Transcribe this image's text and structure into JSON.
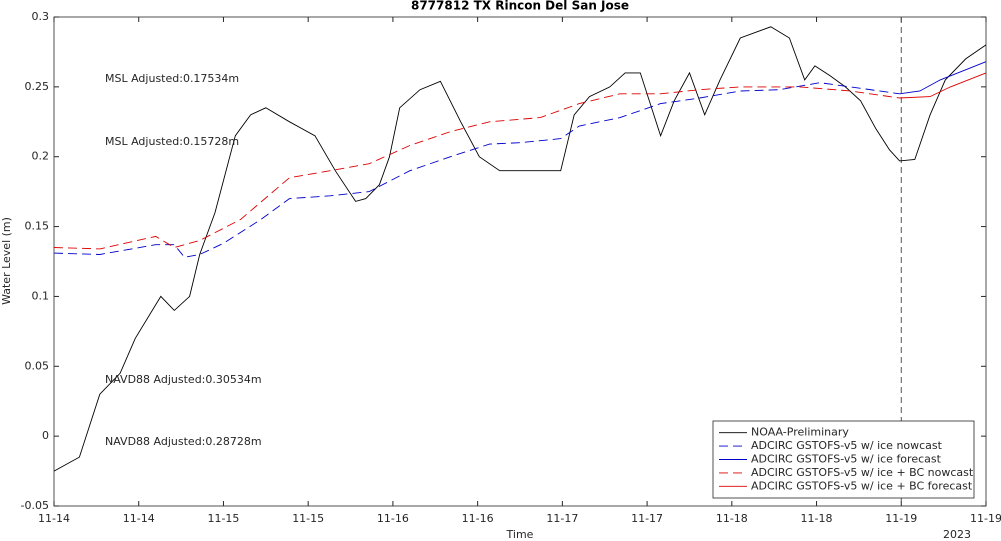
{
  "chart_data": {
    "type": "line",
    "title": "8777812 TX Rincon Del San Jose",
    "xlabel": "Time",
    "ylabel": "Water Level (m)",
    "xsublabel": "2023",
    "xlim": [
      0,
      5.5
    ],
    "ylim": [
      -0.05,
      0.3
    ],
    "xticks": [
      {
        "value": 0,
        "label": "11-14"
      },
      {
        "value": 0.5,
        "label": "11-14"
      },
      {
        "value": 1,
        "label": "11-15"
      },
      {
        "value": 1.5,
        "label": "11-15"
      },
      {
        "value": 2,
        "label": "11-16"
      },
      {
        "value": 2.5,
        "label": "11-16"
      },
      {
        "value": 3,
        "label": "11-17"
      },
      {
        "value": 3.5,
        "label": "11-17"
      },
      {
        "value": 4,
        "label": "11-18"
      },
      {
        "value": 4.5,
        "label": "11-18"
      },
      {
        "value": 5,
        "label": "11-19"
      },
      {
        "value": 5.5,
        "label": "11-19"
      }
    ],
    "yticks": [
      -0.05,
      0,
      0.05,
      0.1,
      0.15,
      0.2,
      0.25,
      0.3
    ],
    "vline": 5,
    "annotations": [
      {
        "text": "MSL Adjusted:0.17534m",
        "color": "#0000cc"
      },
      {
        "text": "MSL Adjusted:0.15728m",
        "color": "#dd0000"
      },
      {
        "text": "NAVD88 Adjusted:0.30534m",
        "color": "#0000cc"
      },
      {
        "text": "NAVD88 Adjusted:0.28728m",
        "color": "#dd0000"
      }
    ],
    "legend": "lower right",
    "series": [
      {
        "name": "NOAA-Preliminary",
        "color": "#000000",
        "dashed": false,
        "x": [
          0,
          0.15,
          0.27,
          0.39,
          0.48,
          0.63,
          0.71,
          0.8,
          0.86,
          0.95,
          1.07,
          1.16,
          1.25,
          1.39,
          1.54,
          1.66,
          1.78,
          1.84,
          1.92,
          1.98,
          2.04,
          2.16,
          2.28,
          2.4,
          2.51,
          2.63,
          2.75,
          2.99,
          3.07,
          3.16,
          3.28,
          3.37,
          3.46,
          3.58,
          3.66,
          3.75,
          3.84,
          3.93,
          4.05,
          4.23,
          4.34,
          4.43,
          4.49,
          4.58,
          4.67,
          4.76,
          4.85,
          4.93,
          4.99,
          5.08,
          5.17,
          5.26,
          5.38,
          5.5
        ],
        "values": [
          -0.025,
          -0.015,
          0.03,
          0.045,
          0.07,
          0.1,
          0.09,
          0.1,
          0.13,
          0.16,
          0.215,
          0.23,
          0.235,
          0.225,
          0.215,
          0.19,
          0.168,
          0.17,
          0.18,
          0.2,
          0.235,
          0.248,
          0.254,
          0.225,
          0.2,
          0.19,
          0.19,
          0.19,
          0.23,
          0.243,
          0.25,
          0.26,
          0.26,
          0.215,
          0.24,
          0.26,
          0.23,
          0.255,
          0.285,
          0.293,
          0.285,
          0.255,
          0.265,
          0.258,
          0.25,
          0.24,
          0.22,
          0.205,
          0.197,
          0.198,
          0.23,
          0.255,
          0.27,
          0.28
        ]
      },
      {
        "name": "ADCIRC GSTOFS-v5 w/ ice nowcast",
        "color": "#0000cc",
        "dashed": true,
        "x": [
          0,
          0.27,
          0.6,
          0.71,
          0.77,
          0.86,
          1,
          1.22,
          1.39,
          1.63,
          1.86,
          2.1,
          2.34,
          2.57,
          2.75,
          2.99,
          3.1,
          3.34,
          3.58,
          3.81,
          4.05,
          4.28,
          4.52,
          4.76,
          4.99
        ],
        "values": [
          0.131,
          0.13,
          0.137,
          0.137,
          0.128,
          0.13,
          0.138,
          0.155,
          0.17,
          0.172,
          0.175,
          0.19,
          0.2,
          0.209,
          0.21,
          0.213,
          0.222,
          0.228,
          0.238,
          0.242,
          0.247,
          0.248,
          0.253,
          0.249,
          0.245
        ]
      },
      {
        "name": "ADCIRC GSTOFS-v5 w/ ice forecast",
        "color": "#0000cc",
        "dashed": false,
        "x": [
          4.99,
          5.11,
          5.23,
          5.5
        ],
        "values": [
          0.245,
          0.247,
          0.255,
          0.268
        ]
      },
      {
        "name": "ADCIRC GSTOFS-v5 w/ ice + BC nowcast",
        "color": "#dd0000",
        "dashed": true,
        "x": [
          0,
          0.27,
          0.6,
          0.71,
          0.86,
          1.1,
          1.39,
          1.63,
          1.86,
          2.1,
          2.34,
          2.57,
          2.87,
          3.1,
          3.34,
          3.58,
          3.81,
          4.05,
          4.4,
          4.7,
          4.99
        ],
        "values": [
          0.135,
          0.134,
          0.143,
          0.135,
          0.14,
          0.155,
          0.185,
          0.19,
          0.195,
          0.208,
          0.218,
          0.225,
          0.228,
          0.238,
          0.245,
          0.245,
          0.248,
          0.25,
          0.25,
          0.247,
          0.242
        ]
      },
      {
        "name": "ADCIRC GSTOFS-v5 w/ ice + BC forecast",
        "color": "#dd0000",
        "dashed": false,
        "x": [
          4.99,
          5.17,
          5.29,
          5.5
        ],
        "values": [
          0.242,
          0.243,
          0.25,
          0.26
        ]
      }
    ]
  }
}
